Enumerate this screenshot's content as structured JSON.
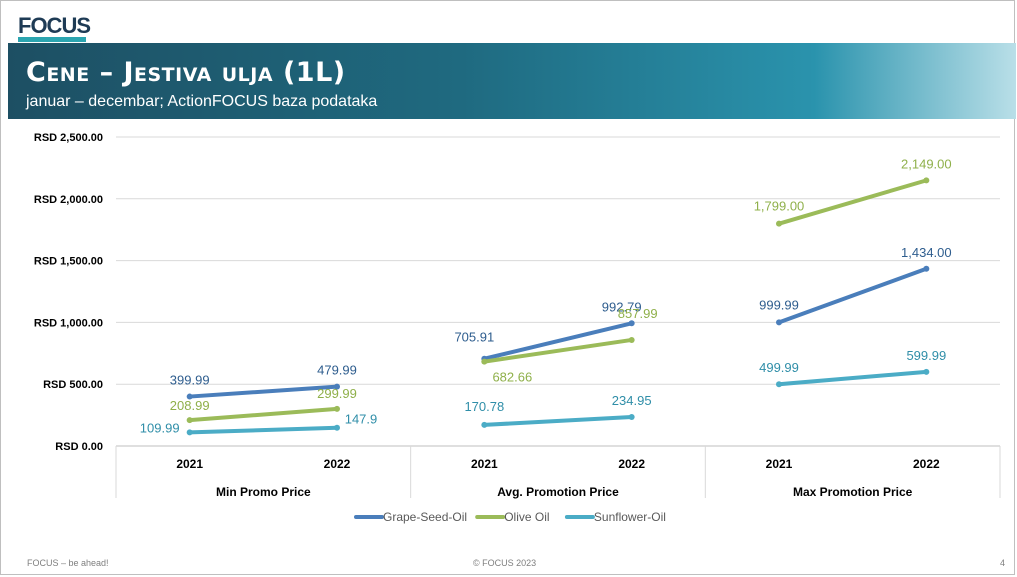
{
  "logo": {
    "text": "FOCUS"
  },
  "header": {
    "title": "Cene – Jestiva ulja (1L)",
    "subtitle": "januar – decembar; ActionFOCUS baza podataka"
  },
  "footer": {
    "left": "FOCUS – be ahead!",
    "center": "© FOCUS 2023",
    "page": "4"
  },
  "colors": {
    "Grape-Seed-Oil": "#4a7ebb",
    "Olive Oil": "#9bbb59",
    "Sunflower-Oil": "#4bacc6",
    "banner": "#1f6a80"
  },
  "chart_data": {
    "type": "line",
    "y_tick_labels": [
      "RSD 0.00",
      "RSD 500.00",
      "RSD 1,000.00",
      "RSD 1,500.00",
      "RSD 2,000.00",
      "RSD 2,500.00"
    ],
    "ylim": [
      0,
      2500
    ],
    "grid": true,
    "legend_position": "bottom",
    "groups": [
      {
        "name": "Min Promo Price",
        "categories": [
          "2021",
          "2022"
        ]
      },
      {
        "name": "Avg. Promotion Price",
        "categories": [
          "2021",
          "2022"
        ]
      },
      {
        "name": "Max Promotion Price",
        "categories": [
          "2021",
          "2022"
        ]
      }
    ],
    "series": [
      {
        "name": "Grape-Seed-Oil",
        "values": [
          [
            399.99,
            479.99
          ],
          [
            705.91,
            992.79
          ],
          [
            999.99,
            1434.0
          ]
        ],
        "labels": [
          [
            "399.99",
            "479.99"
          ],
          [
            "705.91",
            "992.79"
          ],
          [
            "999.99",
            "1,434.00"
          ]
        ]
      },
      {
        "name": "Olive Oil",
        "values": [
          [
            208.99,
            299.99
          ],
          [
            682.66,
            857.99
          ],
          [
            1799.0,
            2149.0
          ]
        ],
        "labels": [
          [
            "208.99",
            "299.99"
          ],
          [
            "682.66",
            "857.99"
          ],
          [
            "1,799.00",
            "2,149.00"
          ]
        ]
      },
      {
        "name": "Sunflower-Oil",
        "values": [
          [
            109.99,
            147.9
          ],
          [
            170.78,
            234.95
          ],
          [
            499.99,
            599.99
          ]
        ],
        "labels": [
          [
            "109.99",
            "147.9"
          ],
          [
            "170.78",
            "234.95"
          ],
          [
            "499.99",
            "599.99"
          ]
        ]
      }
    ]
  }
}
